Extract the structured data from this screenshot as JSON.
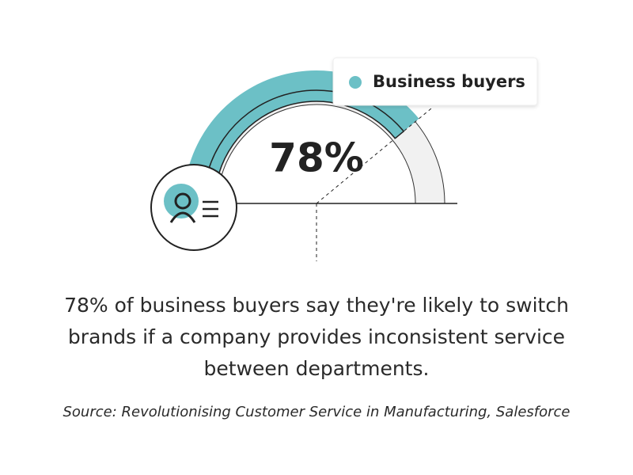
{
  "chart_data": {
    "type": "gauge",
    "series": [
      {
        "name": "Business buyers",
        "color": "#6cc0c6",
        "values": [
          78
        ],
        "value_labels": [
          "78%"
        ]
      }
    ],
    "ylim": [
      0,
      100
    ],
    "caption": "78% of business buyers say they're likely to switch brands if a company provides inconsistent service between departments.",
    "source": "Source: Revolutionising Customer Service in Manufacturing, Salesforce"
  }
}
